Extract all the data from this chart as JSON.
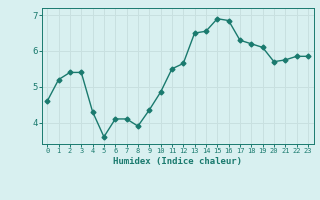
{
  "x": [
    0,
    1,
    2,
    3,
    4,
    5,
    6,
    7,
    8,
    9,
    10,
    11,
    12,
    13,
    14,
    15,
    16,
    17,
    18,
    19,
    20,
    21,
    22,
    23
  ],
  "y": [
    4.6,
    5.2,
    5.4,
    5.4,
    4.3,
    3.6,
    4.1,
    4.1,
    3.9,
    4.35,
    4.85,
    5.5,
    5.65,
    6.5,
    6.55,
    6.9,
    6.85,
    6.3,
    6.2,
    6.1,
    5.7,
    5.75,
    5.85,
    5.85
  ],
  "line_color": "#1a7a6e",
  "bg_color": "#d8f0f0",
  "grid_color": "#c8e0e0",
  "xlabel": "Humidex (Indice chaleur)",
  "yticks": [
    4,
    5,
    6,
    7
  ],
  "xlim": [
    -0.5,
    23.5
  ],
  "ylim": [
    3.4,
    7.2
  ],
  "tick_color": "#1a7a6e",
  "label_color": "#1a7a6e",
  "marker": "D",
  "marker_size": 2.5,
  "line_width": 1.0
}
